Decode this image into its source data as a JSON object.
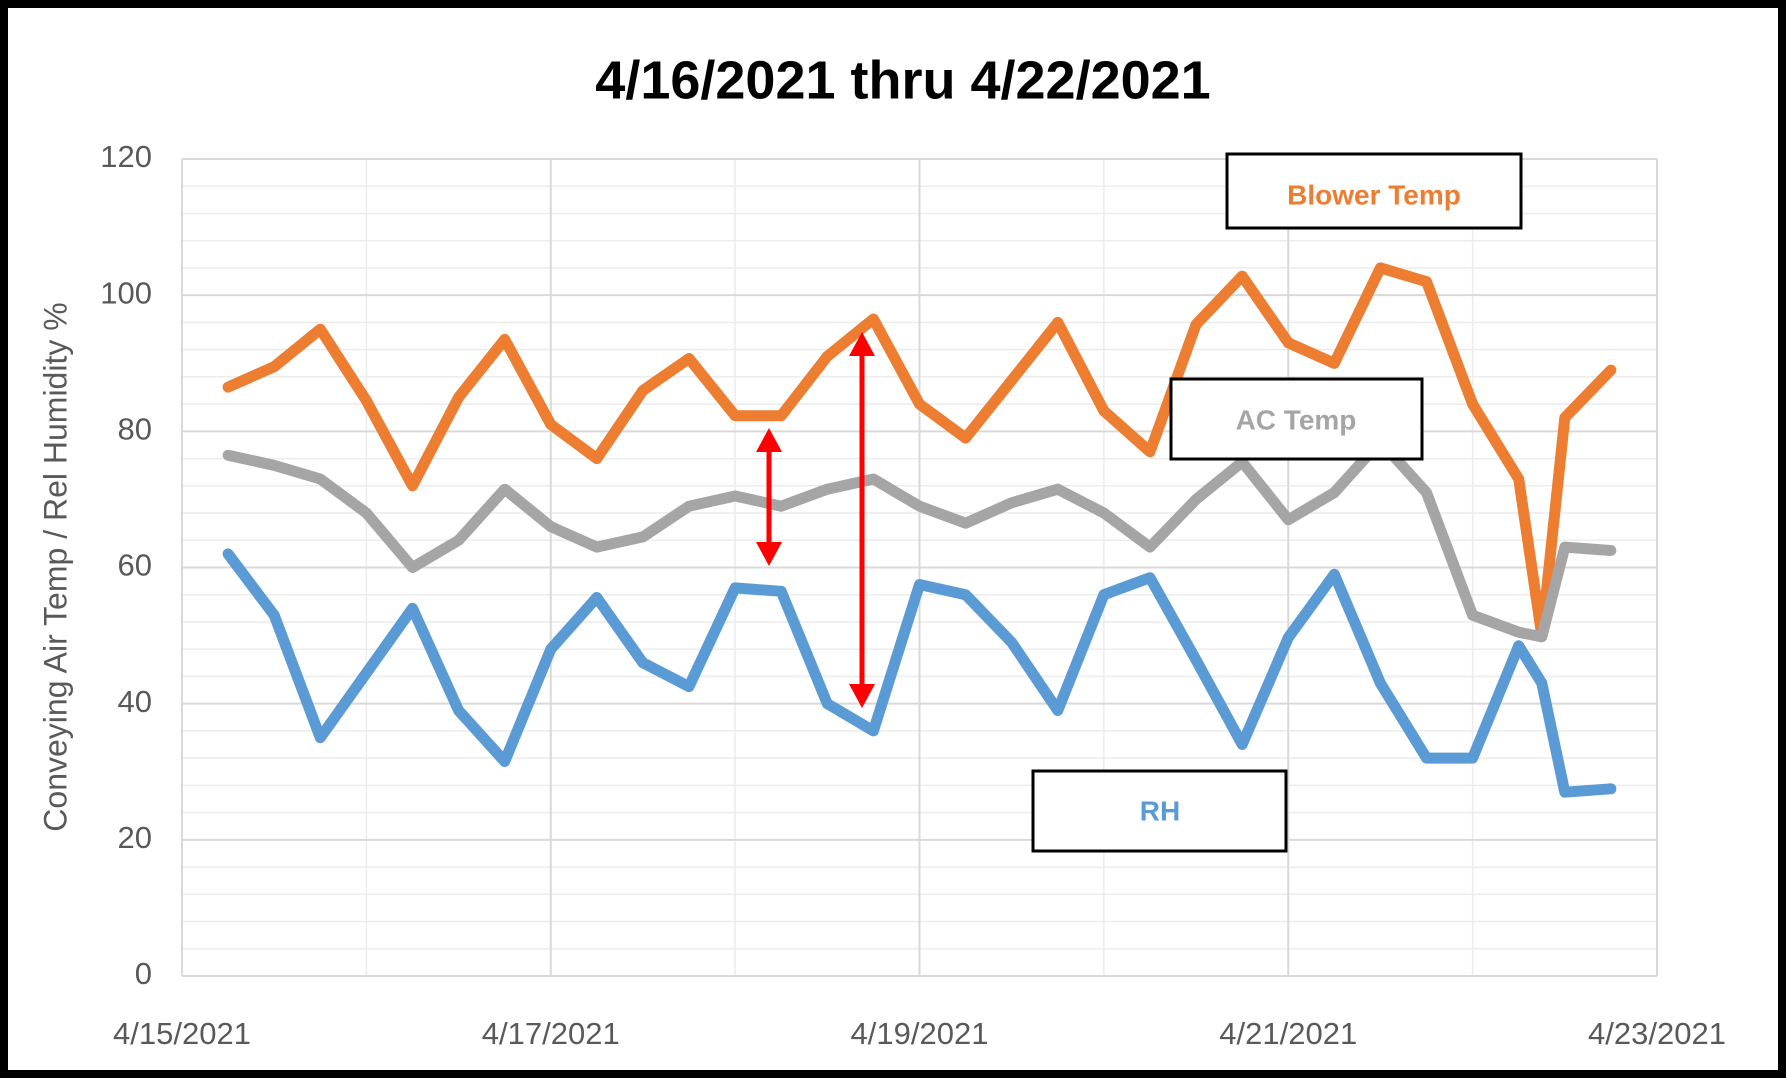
{
  "chart_data": {
    "type": "line",
    "title": "4/16/2021 thru 4/22/2021",
    "y_label": "Conveying Air Temp / Rel Humidity %",
    "x": [
      "2021-04-15T06:00",
      "2021-04-15T12:00",
      "2021-04-15T18:00",
      "2021-04-16T00:00",
      "2021-04-16T06:00",
      "2021-04-16T12:00",
      "2021-04-16T18:00",
      "2021-04-17T00:00",
      "2021-04-17T06:00",
      "2021-04-17T12:00",
      "2021-04-17T18:00",
      "2021-04-18T00:00",
      "2021-04-18T06:00",
      "2021-04-18T12:00",
      "2021-04-18T18:00",
      "2021-04-19T00:00",
      "2021-04-19T06:00",
      "2021-04-19T12:00",
      "2021-04-19T18:00",
      "2021-04-20T00:00",
      "2021-04-20T06:00",
      "2021-04-20T12:00",
      "2021-04-20T18:00",
      "2021-04-21T00:00",
      "2021-04-21T06:00",
      "2021-04-21T12:00",
      "2021-04-21T18:00",
      "2021-04-22T00:00",
      "2021-04-22T06:00",
      "2021-04-22T09:00",
      "2021-04-22T12:00",
      "2021-04-22T18:00"
    ],
    "series": [
      {
        "name": "Blower Temp",
        "color": "#ed7d31",
        "values": [
          86.5,
          89.5,
          95,
          84.5,
          72,
          85,
          93.5,
          81,
          76,
          86,
          90.7,
          82.3,
          82.3,
          91,
          96.5,
          84,
          79,
          87.5,
          96,
          83,
          77,
          95.7,
          102.8,
          93,
          90,
          104,
          102,
          84,
          73,
          50,
          82,
          89
        ]
      },
      {
        "name": "AC Temp",
        "color": "#a5a5a5",
        "values": [
          76.5,
          75,
          73,
          68,
          60,
          64,
          71.5,
          66,
          63,
          64.5,
          69,
          70.5,
          69,
          71.5,
          73,
          69,
          66.5,
          69.5,
          71.5,
          68,
          63,
          70,
          75.5,
          67,
          71,
          78.5,
          71,
          53,
          50.5,
          49.8,
          63,
          62.5
        ]
      },
      {
        "name": "RH",
        "color": "#5b9bd5",
        "values": [
          62,
          53,
          35,
          44.5,
          54,
          39,
          31.5,
          48,
          55.6,
          46,
          42.5,
          57,
          56.5,
          40,
          36,
          57.5,
          56,
          49,
          39,
          56,
          58.5,
          46.4,
          34,
          49.7,
          59,
          43,
          32,
          32,
          48.5,
          43,
          27,
          27.5
        ]
      }
    ],
    "annotations": [
      "Blower Temp",
      "AC Temp",
      "RH"
    ],
    "xlim": [
      "2021-04-15T00:00",
      "2021-04-23T00:00"
    ],
    "xticks": [
      {
        "value": "2021-04-15T00:00",
        "label": "4/15/2021"
      },
      {
        "value": "2021-04-17T00:00",
        "label": "4/17/2021"
      },
      {
        "value": "2021-04-19T00:00",
        "label": "4/19/2021"
      },
      {
        "value": "2021-04-21T00:00",
        "label": "4/21/2021"
      },
      {
        "value": "2021-04-23T00:00",
        "label": "4/23/2021"
      }
    ],
    "ylim": [
      0,
      120
    ],
    "yticks": [
      0,
      20,
      40,
      60,
      80,
      100,
      120
    ],
    "grid": true
  }
}
